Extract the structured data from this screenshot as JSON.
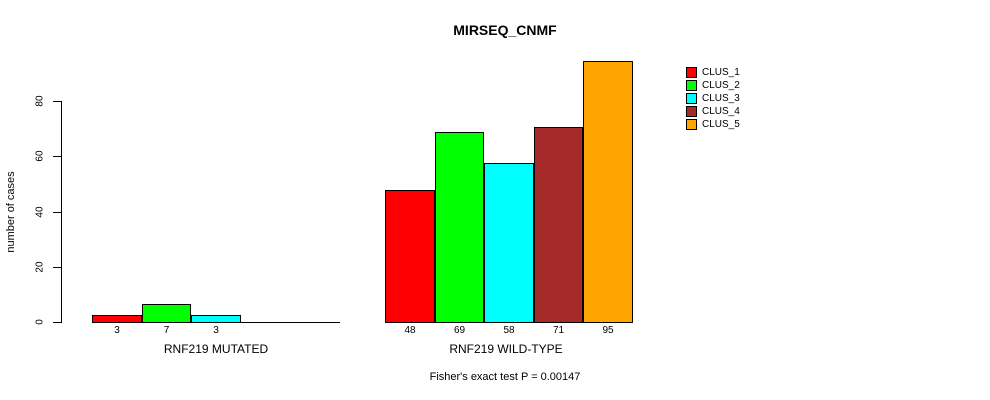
{
  "chart_data": {
    "type": "bar",
    "title": "MIRSEQ_CNMF",
    "ylabel": "number of cases",
    "subtitle": "Fisher's exact test P = 0.00147",
    "ylim": [
      0,
      80
    ],
    "yticks": [
      0,
      20,
      40,
      60,
      80
    ],
    "grid": false,
    "series": [
      "CLUS_1",
      "CLUS_2",
      "CLUS_3",
      "CLUS_4",
      "CLUS_5"
    ],
    "colors": [
      "#ff0000",
      "#00ff00",
      "#00ffff",
      "#a52a2a",
      "#ffa500"
    ],
    "groups": [
      {
        "label": "RNF219 MUTATED",
        "values": [
          3,
          7,
          3,
          0,
          0
        ]
      },
      {
        "label": "RNF219 WILD-TYPE",
        "values": [
          48,
          69,
          58,
          71,
          95
        ]
      }
    ],
    "legend": {
      "position": "right",
      "entries": [
        "CLUS_1",
        "CLUS_2",
        "CLUS_3",
        "CLUS_4",
        "CLUS_5"
      ]
    }
  }
}
